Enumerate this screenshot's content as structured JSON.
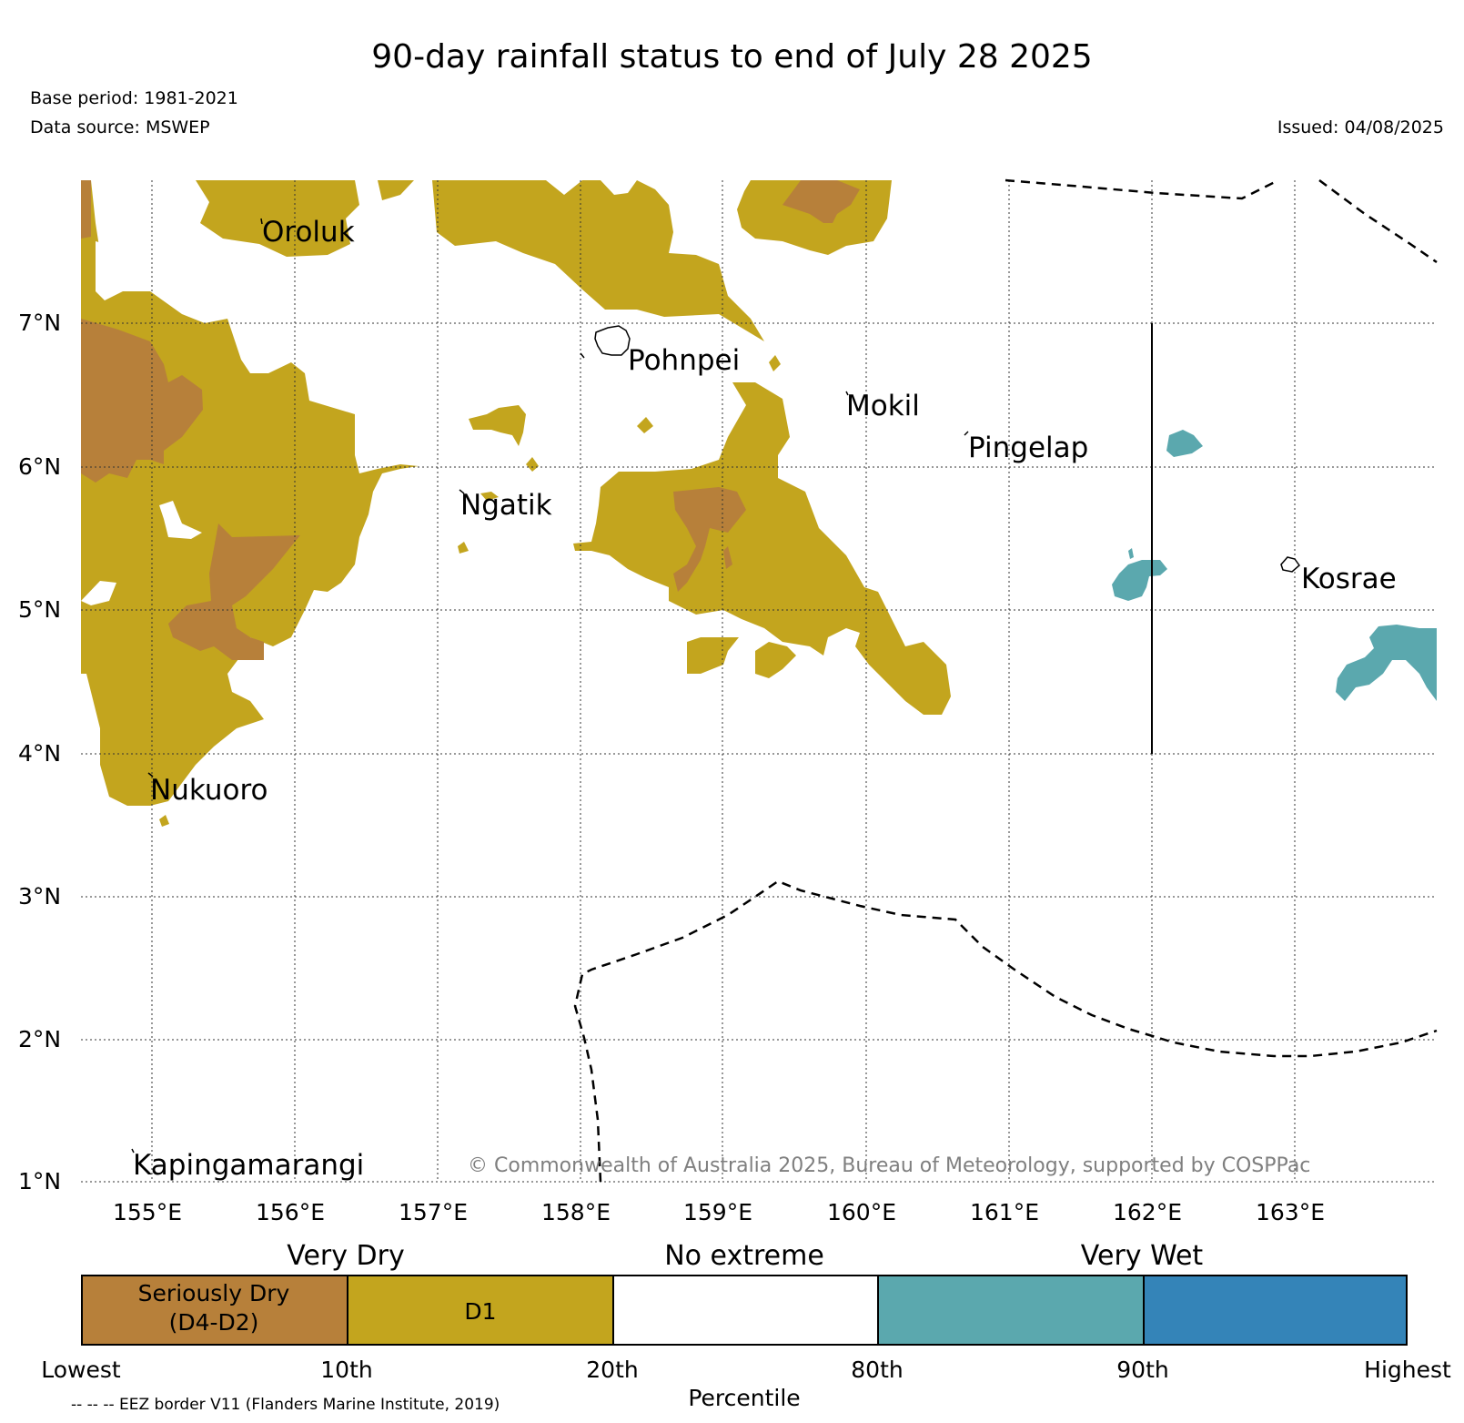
{
  "title": "90-day rainfall status to end of July 28 2025",
  "meta": {
    "base_period": "Base period: 1981-2021",
    "data_source": "Data source: MSWEP",
    "issued": "Issued: 04/08/2025"
  },
  "copyright": "© Commonwealth of Australia 2025, Bureau of Meteorology, supported by COSPPac",
  "axes": {
    "lon_ticks": [
      "155°E",
      "156°E",
      "157°E",
      "158°E",
      "159°E",
      "160°E",
      "161°E",
      "162°E",
      "163°E"
    ],
    "lat_ticks": [
      "7°N",
      "6°N",
      "5°N",
      "4°N",
      "3°N",
      "2°N",
      "1°N"
    ]
  },
  "places": [
    {
      "name": "Oroluk"
    },
    {
      "name": "Pohnpei"
    },
    {
      "name": "Mokil"
    },
    {
      "name": "Pingelap"
    },
    {
      "name": "Ngatik"
    },
    {
      "name": "Kosrae"
    },
    {
      "name": "Nukuoro"
    },
    {
      "name": "Kapingamarangi"
    }
  ],
  "colors": {
    "seriously_dry": "#b7803a",
    "d1": "#c3a51e",
    "no_extreme": "#ffffff",
    "wet_80_90": "#5ba8ae",
    "wet_90_high": "#3484b8",
    "grid": "#333333"
  },
  "legend": {
    "headers": [
      "Very Dry",
      "No extreme",
      "Very Wet"
    ],
    "boxes": [
      {
        "label_line1": "Seriously Dry",
        "label_line2": "(D4-D2)"
      },
      {
        "label_line1": "D1",
        "label_line2": ""
      },
      {
        "label_line1": "",
        "label_line2": ""
      },
      {
        "label_line1": "",
        "label_line2": ""
      },
      {
        "label_line1": "",
        "label_line2": ""
      }
    ],
    "ticks": [
      "Lowest",
      "10th",
      "20th",
      "80th",
      "90th",
      "Highest"
    ],
    "xlabel": "Percentile",
    "eez_note": "-- -- -- EEZ border V11 (Flanders Marine Institute, 2019)"
  }
}
